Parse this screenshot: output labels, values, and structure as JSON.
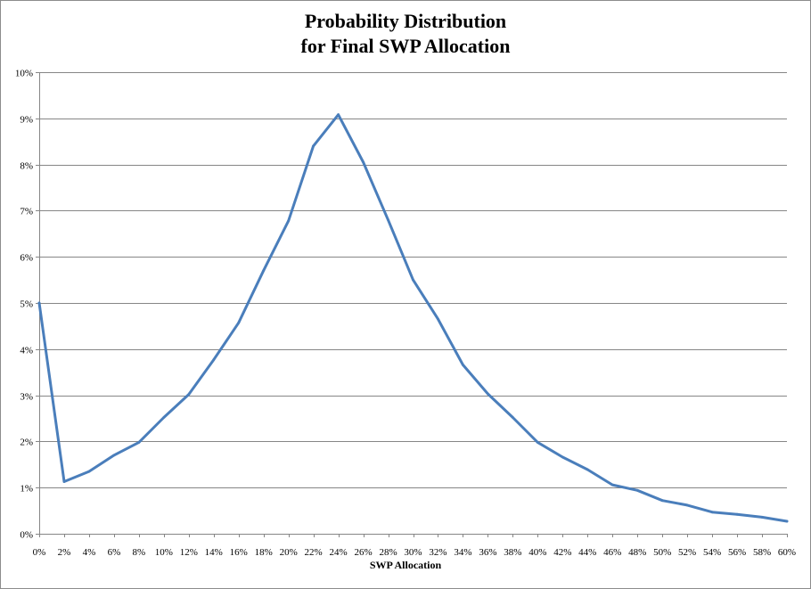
{
  "chart_data": {
    "type": "line",
    "title": [
      "Probability Distribution",
      "for Final SWP Allocation"
    ],
    "xlabel": "SWP Allocation",
    "ylabel": "",
    "x": [
      "0%",
      "2%",
      "4%",
      "6%",
      "8%",
      "10%",
      "12%",
      "14%",
      "16%",
      "18%",
      "20%",
      "22%",
      "24%",
      "26%",
      "28%",
      "30%",
      "32%",
      "34%",
      "36%",
      "38%",
      "40%",
      "42%",
      "44%",
      "46%",
      "48%",
      "50%",
      "52%",
      "54%",
      "56%",
      "58%",
      "60%"
    ],
    "series": [
      {
        "values": [
          5.0,
          1.13,
          1.35,
          1.7,
          1.98,
          2.52,
          3.02,
          3.77,
          4.57,
          5.7,
          6.78,
          8.4,
          9.08,
          8.05,
          6.8,
          5.5,
          4.65,
          3.66,
          3.03,
          2.52,
          1.98,
          1.66,
          1.39,
          1.06,
          0.94,
          0.72,
          0.62,
          0.47,
          0.42,
          0.36,
          0.27
        ],
        "color": "#4a7ebb"
      }
    ],
    "ylim": [
      0,
      10
    ],
    "yticks": [
      "0%",
      "1%",
      "2%",
      "3%",
      "4%",
      "5%",
      "6%",
      "7%",
      "8%",
      "9%",
      "10%"
    ],
    "grid": true,
    "legend": "none",
    "gridline_color": "#868686"
  }
}
